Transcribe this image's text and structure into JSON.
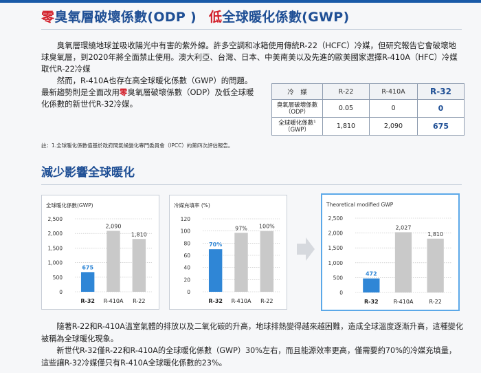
{
  "title": {
    "part1_red": "零",
    "part1_rest": "臭氧層破壞係數(ODP )",
    "part2_red": "低",
    "part2_rest": "全球暖化係數(GWP)"
  },
  "intro": {
    "p1": "臭氧層環繞地球並吸收陽光中有害的紫外線。許多空調和冰箱使用傳統R-22（HCFC）冷媒，但研究報告它會破壞地球臭氧層，到2020年將全面禁止使用。澳大利亞、台灣、日本、中美南美以及先進的歐美國家選擇R-410A（HFC）冷媒取代R-22冷媒",
    "p2_a": "然而，R-410A也存在高全球暖化係數（GWP）的問題。最新趨勢則是全面改用",
    "p2_red": "零",
    "p2_b": "臭氧層破壞係數（ODP）及低全球暖化係數的新世代R-32冷媒。"
  },
  "table": {
    "headers": [
      "冷　媒",
      "R-22",
      "R-410A",
      "R-32"
    ],
    "rows": [
      {
        "label": "臭氧層破壞係數（ODP）",
        "values": [
          "0.05",
          "0",
          "0"
        ]
      },
      {
        "label": "全球暖化係數¹（GWP）",
        "values": [
          "1,810",
          "2,090",
          "675"
        ]
      }
    ]
  },
  "note": "註：1.全球暖化係數值基於政府間氣候變化專門委員會（IPCC）的第四次評估報告。",
  "section2_title": "減少影響全球暖化",
  "chart_data": [
    {
      "type": "bar",
      "title": "全球暖化係數(GWP)",
      "categories": [
        "R-32",
        "R-410A",
        "R-22"
      ],
      "values": [
        675,
        2090,
        1810
      ],
      "labels": [
        "675",
        "2,090",
        "1,810"
      ],
      "yticks": [
        "0",
        "500",
        "1,000",
        "1,500",
        "2,000",
        "2,500"
      ],
      "ylim": [
        0,
        2500
      ],
      "highlight_color": "#2f86d6",
      "bar_color": "#c9c9c9"
    },
    {
      "type": "bar",
      "title": "冷媒充填率 (%)",
      "categories": [
        "R-32",
        "R-410A",
        "R-22"
      ],
      "values": [
        70,
        97,
        100
      ],
      "labels": [
        "70%",
        "97%",
        "100%"
      ],
      "yticks": [
        "0",
        "20",
        "40",
        "60",
        "80",
        "100",
        "120"
      ],
      "ylim": [
        0,
        120
      ],
      "highlight_color": "#2f86d6",
      "bar_color": "#c9c9c9"
    },
    {
      "type": "bar",
      "title": "Theoretical modified GWP",
      "categories": [
        "R-32",
        "R-410A",
        "R-22"
      ],
      "values": [
        472,
        2027,
        1810
      ],
      "labels": [
        "472",
        "2,027",
        "1,810"
      ],
      "yticks": [
        "0",
        "500",
        "1,000",
        "1,500",
        "2,000",
        "2,500"
      ],
      "ylim": [
        0,
        2500
      ],
      "highlight_color": "#2f86d6",
      "bar_color": "#c9c9c9"
    }
  ],
  "bottom": {
    "p1": "隨著R-22和R-410A溫室氣體的排放以及二氧化碳的升高，地球排熱變得越來越困難，造成全球溫度逐漸升高，這種變化被稱為全球暖化現象。",
    "p2": "新世代R-32僅R-22和R-410A的全球暖化係數（GWP）30%左右，而且能源效率更高，僅需要約70%的冷媒充填量，這些讓R-32冷媒僅只有R-410A全球暖化係數的23%。"
  }
}
